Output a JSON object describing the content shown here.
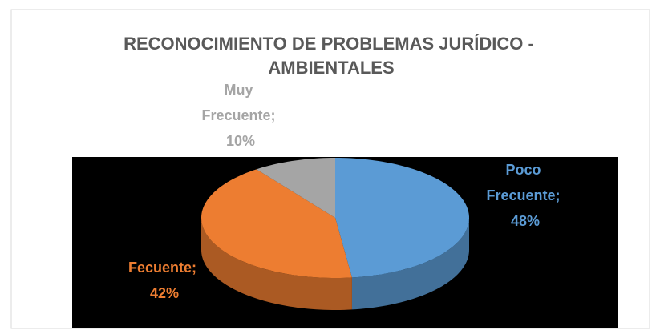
{
  "chart_data": {
    "type": "pie",
    "title": "RECONOCIMIENTO DE PROBLEMAS JURÍDICO - AMBIENTALES",
    "categories": [
      "Poco Frecuente",
      "Fecuente",
      "Muy Frecuente"
    ],
    "values": [
      48,
      42,
      10
    ],
    "value_labels": [
      "Poco Frecuente; 48%",
      "Fecuente; 42%",
      "Muy Frecuente; 10%"
    ],
    "colors": [
      "#5b9bd5",
      "#ed7d31",
      "#a5a5a5"
    ]
  }
}
